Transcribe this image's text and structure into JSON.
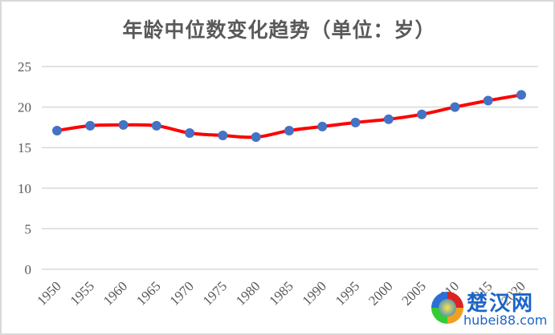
{
  "chart_data": {
    "type": "line",
    "title": "年龄中位数变化趋势（单位：岁）",
    "xlabel": "",
    "ylabel": "",
    "categories": [
      "1950",
      "1955",
      "1960",
      "1965",
      "1970",
      "1975",
      "1980",
      "1985",
      "1990",
      "1995",
      "2000",
      "2005",
      "2010",
      "2015",
      "2020"
    ],
    "series": [
      {
        "name": "年龄中位数",
        "values": [
          17.1,
          17.7,
          17.8,
          17.7,
          16.8,
          16.5,
          16.3,
          17.1,
          17.6,
          18.1,
          18.5,
          19.1,
          20.0,
          20.8,
          21.5
        ],
        "line_color": "#ff0000",
        "marker_color": "#4472c4"
      }
    ],
    "ylim": [
      0,
      25
    ],
    "yticks": [
      0,
      5,
      10,
      15,
      20,
      25
    ],
    "grid": true,
    "legend": "none",
    "smooth": true
  },
  "watermark": {
    "cn": "楚汉网",
    "en": "hubei88.com"
  }
}
